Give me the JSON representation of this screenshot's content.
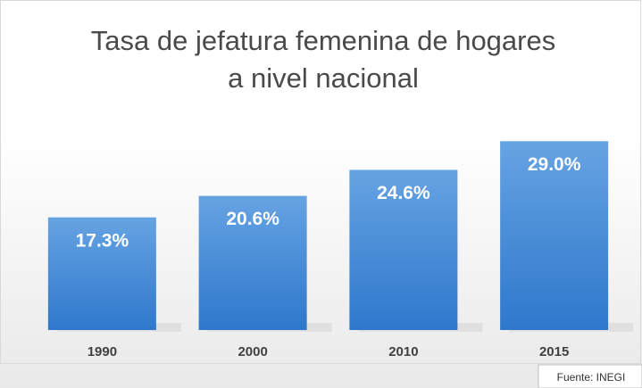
{
  "chart_data": {
    "type": "bar",
    "title": [
      "Tasa de jefatura femenina de hogares",
      "a nivel nacional"
    ],
    "categories": [
      "1990",
      "2000",
      "2010",
      "2015"
    ],
    "values": [
      17.3,
      20.6,
      24.6,
      29.0
    ],
    "value_labels": [
      "17.3%",
      "20.6%",
      "24.6%",
      "29.0%"
    ],
    "color": "#4a8fd9",
    "source": "Fuente: INEGI"
  }
}
